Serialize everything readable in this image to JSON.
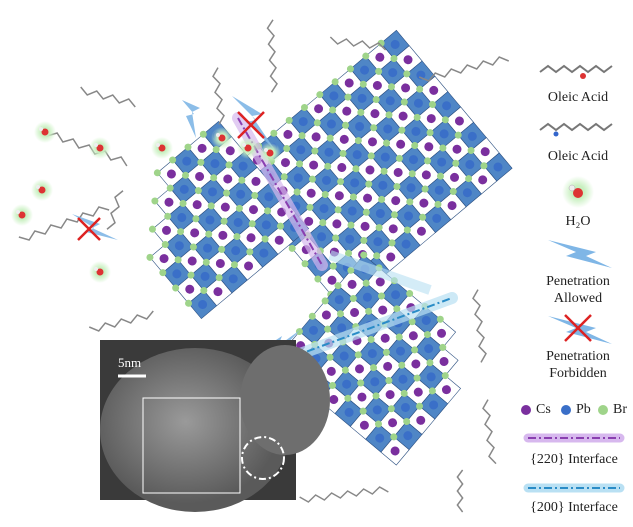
{
  "legend": {
    "oleic_acid_1": "Oleic Acid",
    "oleic_acid_2": "Oleic Acid",
    "water": "H₂O",
    "penetration_allowed": [
      "Penetration",
      "Allowed"
    ],
    "penetration_forbidden": [
      "Penetration",
      "Forbidden"
    ],
    "atoms": [
      "Cs",
      "Pb",
      "Br"
    ],
    "interface_220": "{220} Interface",
    "interface_200": "{200} Interface"
  },
  "inset": {
    "scale_bar": "5nm"
  }
}
